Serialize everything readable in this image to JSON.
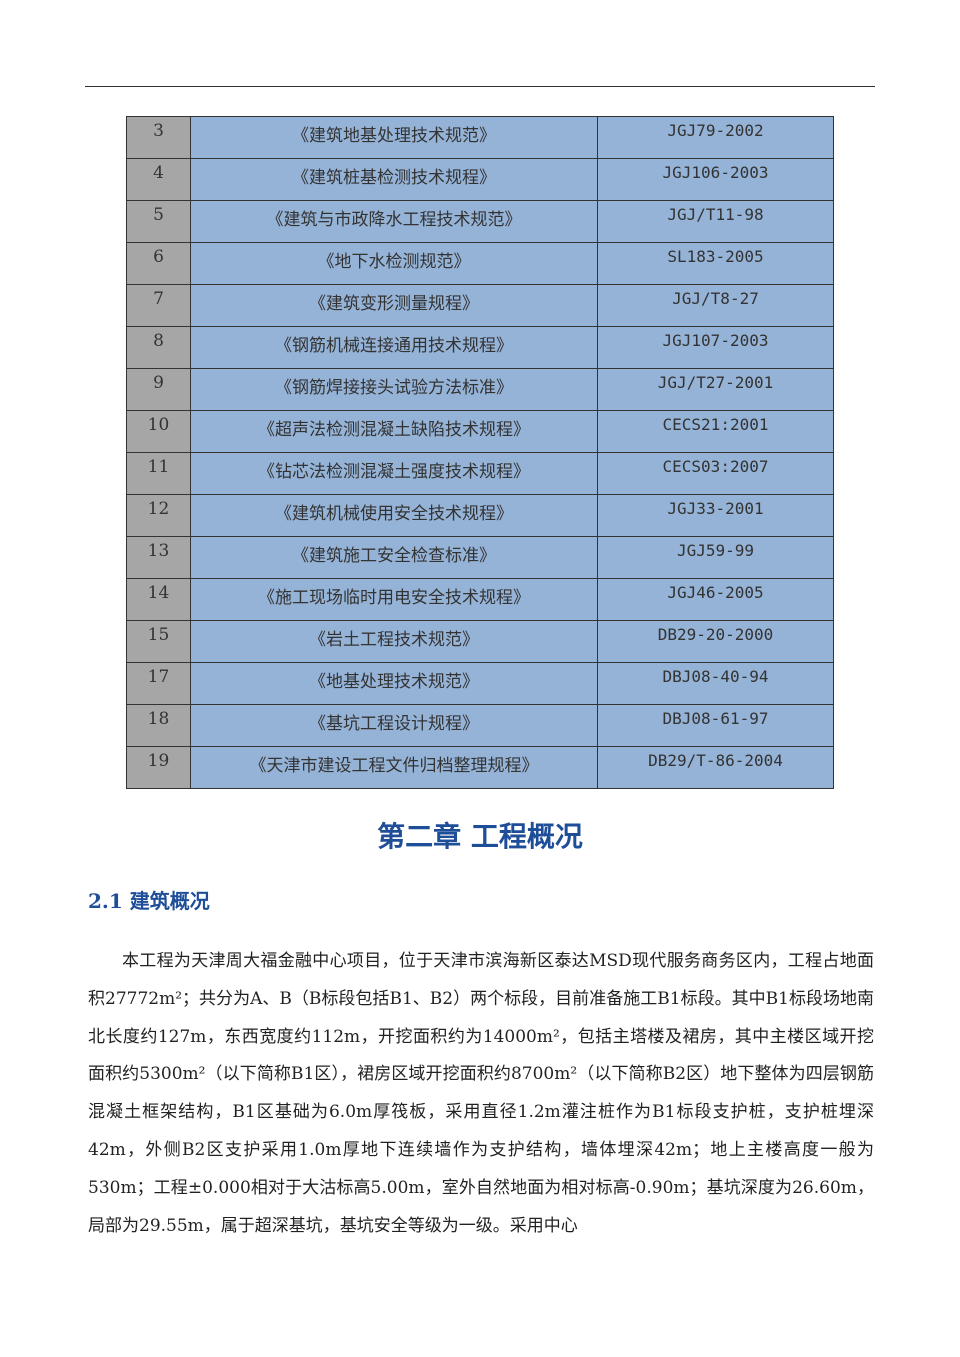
{
  "table": {
    "rows": [
      [
        "3",
        "《建筑地基处理技术规范》",
        "JGJ79-2002"
      ],
      [
        "4",
        "《建筑桩基检测技术规程》",
        "JGJ106-2003"
      ],
      [
        "5",
        "《建筑与市政降水工程技术规范》",
        "JGJ/T11-98"
      ],
      [
        "6",
        "《地下水检测规范》",
        "SL183-2005"
      ],
      [
        "7",
        "《建筑变形测量规程》",
        "JGJ/T8-27"
      ],
      [
        "8",
        "《钢筋机械连接通用技术规程》",
        "JGJ107-2003"
      ],
      [
        "9",
        "《钢筋焊接接头试验方法标准》",
        "JGJ/T27-2001"
      ],
      [
        "10",
        "《超声法检测混凝土缺陷技术规程》",
        "CECS21:2001"
      ],
      [
        "11",
        "《钻芯法检测混凝土强度技术规程》",
        "CECS03:2007"
      ],
      [
        "12",
        "《建筑机械使用安全技术规程》",
        "JGJ33-2001"
      ],
      [
        "13",
        "《建筑施工安全检查标准》",
        "JGJ59-99"
      ],
      [
        "14",
        "《施工现场临时用电安全技术规程》",
        "JGJ46-2005"
      ],
      [
        "15",
        "《岩土工程技术规范》",
        "DB29-20-2000"
      ],
      [
        "17",
        "《地基处理技术规范》",
        "DBJ08-40-94"
      ],
      [
        "18",
        "《基坑工程设计规程》",
        "DBJ08-61-97"
      ],
      [
        "19",
        "《天津市建设工程文件归档整理规程》",
        "DB29/T-86-2004"
      ]
    ]
  },
  "chapter_title": "第二章  工程概况",
  "section_title": "2.1 建筑概况",
  "paragraph": "本工程为天津周大福金融中心项目，位于天津市滨海新区泰达MSD现代服务商务区内，工程占地面积27772m²；共分为A、B（B标段包括B1、B2）两个标段，目前准备施工B1标段。其中B1标段场地南北长度约127m，东西宽度约112m，开挖面积约为14000m²，包括主塔楼及裙房，其中主楼区域开挖面积约5300m²（以下简称B1区），裙房区域开挖面积约8700m²（以下简称B2区）地下整体为四层钢筋混凝土框架结构，B1区基础为6.0m厚筏板，采用直径1.2m灌注桩作为B1标段支护桩，支护桩埋深42m，外侧B2区支护采用1.0m厚地下连续墙作为支护结构，墙体埋深42m；地上主楼高度一般为530m；工程±0.000相对于大沽标高5.00m，室外自然地面为相对标高-0.90m；基坑深度为26.60m，局部为29.55m，属于超深基坑，基坑安全等级为一级。采用中心",
  "colors": {
    "number_cell": "#a6a6a6",
    "content_cell": "#95b3d7",
    "heading": "#1f4e99"
  }
}
